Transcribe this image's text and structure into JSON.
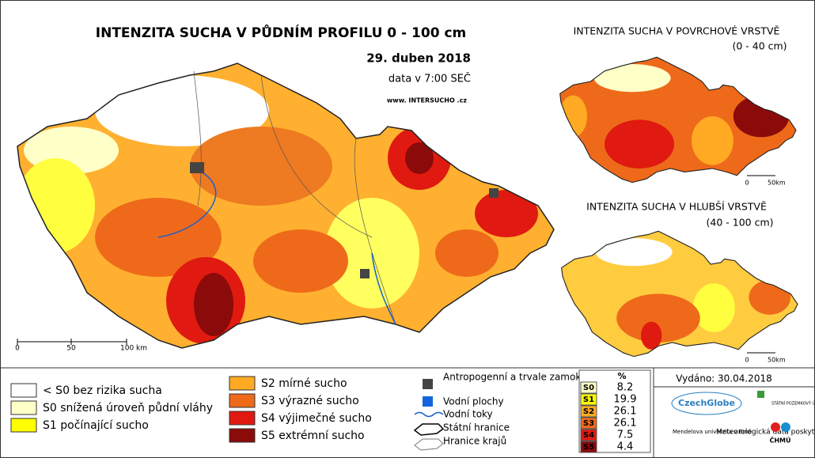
{
  "header": {
    "title": "INTENZITA SUCHA V PŮDNÍM PROFILU 0 - 100 cm",
    "date": "29. duben 2018",
    "time": "data v 7:00 SEČ",
    "url": "www. INTERSUCHO .cz"
  },
  "main_map": {
    "scale": [
      "0",
      "50",
      "100 km"
    ]
  },
  "insets": [
    {
      "title": "INTENZITA SUCHA V POVRCHOVÉ VRSTVĚ",
      "subtitle": "(0 - 40 cm)",
      "scale": [
        "0",
        "50km"
      ]
    },
    {
      "title": "INTENZITA SUCHA V HLUBŠÍ VRSTVĚ",
      "subtitle": "(40 - 100 cm)",
      "scale": [
        "0",
        "50km"
      ]
    }
  ],
  "legend": {
    "classes": [
      {
        "label": "< S0 bez rizika sucha",
        "color": "#ffffff"
      },
      {
        "label": "S0 snížená úroveň půdní vláhy",
        "color": "#ffffc8"
      },
      {
        "label": "S1 počínající sucho",
        "color": "#ffff00"
      },
      {
        "label": "S2 mírné sucho",
        "color": "#ffaa22"
      },
      {
        "label": "S3 výrazné sucho",
        "color": "#ee6a1a"
      },
      {
        "label": "S4 výjimečné sucho",
        "color": "#e01a10"
      },
      {
        "label": "S5 extrémní sucho",
        "color": "#8b0a0a"
      }
    ],
    "symbols": [
      "Antropogenní a trvale zamokřené oblasti",
      "Vodní plochy",
      "Vodní toky",
      "Státní hranice",
      "Hranice krajů"
    ]
  },
  "table": {
    "header": "%",
    "rows": [
      {
        "class": "S0",
        "value": 8.2,
        "color": "#ffffc8"
      },
      {
        "class": "S1",
        "value": 19.9,
        "color": "#ffff00"
      },
      {
        "class": "S2",
        "value": 26.1,
        "color": "#ffaa22"
      },
      {
        "class": "S3",
        "value": 26.1,
        "color": "#ee6a1a"
      },
      {
        "class": "S4",
        "value": 7.5,
        "color": "#e01a10"
      },
      {
        "class": "S5",
        "value": 4.4,
        "color": "#8b0a0a"
      }
    ]
  },
  "issued": "Vydáno: 30.04.2018",
  "logos": {
    "czechglobe": "CzechGlobe",
    "spu": "STÁTNÍ POZEMKOVÝ ÚŘAD",
    "mendel": "Mendelova univerzita v Brně",
    "meteo": "Meteorologická data poskytuje:",
    "chmu": "ČHMÚ"
  }
}
